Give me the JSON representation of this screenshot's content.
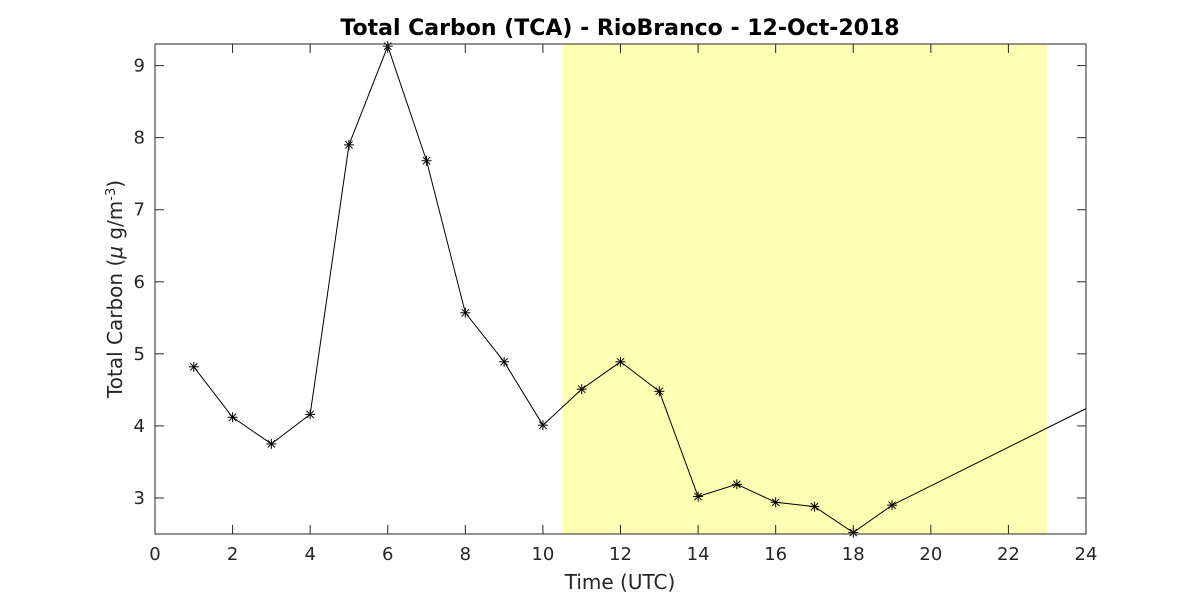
{
  "chart_data": {
    "type": "line",
    "title": "Total Carbon (TCA) - RioBranco - 12-Oct-2018",
    "xlabel": "Time (UTC)",
    "ylabel": {
      "prefix": "Total Carbon (",
      "mu": "μ",
      "unit": " g/m",
      "sup": "-3",
      "suffix": ")"
    },
    "xlim": [
      0,
      24
    ],
    "ylim": [
      2.5,
      9.3
    ],
    "xticks": [
      0,
      2,
      4,
      6,
      8,
      10,
      12,
      14,
      16,
      18,
      20,
      22,
      24
    ],
    "yticks": [
      3,
      4,
      5,
      6,
      7,
      8,
      9
    ],
    "grid": false,
    "highlight_band": {
      "x_start": 10.5,
      "x_end": 23.0,
      "color": "#ffffb3"
    },
    "series": [
      {
        "color": "#000000",
        "marker": "asterisk",
        "x": [
          1,
          2,
          3,
          4,
          5,
          6,
          7,
          8,
          9,
          10,
          11,
          12,
          13,
          14,
          15,
          16,
          17,
          18,
          19
        ],
        "y": [
          4.82,
          4.12,
          3.75,
          4.16,
          7.9,
          9.27,
          7.68,
          5.57,
          4.89,
          4.01,
          4.51,
          4.89,
          4.48,
          3.02,
          3.19,
          2.94,
          2.88,
          2.52,
          2.9
        ]
      }
    ],
    "trail_line": {
      "x": [
        19,
        24
      ],
      "y": [
        2.9,
        4.24
      ]
    }
  }
}
